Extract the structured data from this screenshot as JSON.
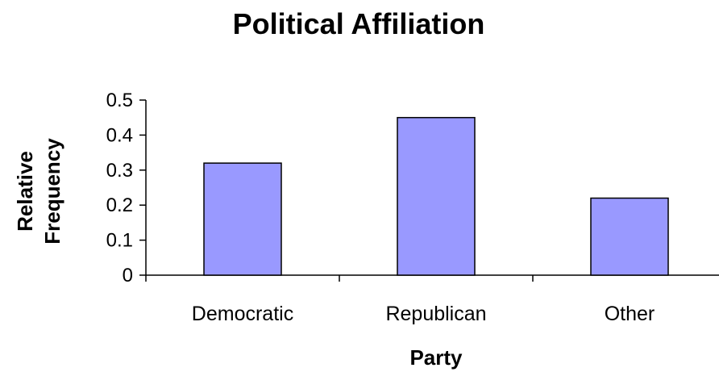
{
  "chart_data": {
    "type": "bar",
    "title": "Political Affiliation",
    "xlabel": "Party",
    "ylabel_lines": [
      "Relative",
      "Frequency"
    ],
    "categories": [
      "Democratic",
      "Republican",
      "Other"
    ],
    "values": [
      0.32,
      0.45,
      0.22
    ],
    "ylim": [
      0,
      0.5
    ],
    "yticks": [
      "0",
      "0.1",
      "0.2",
      "0.3",
      "0.4",
      "0.5"
    ],
    "bar_color": "#9999FF",
    "grid": false,
    "legend": "none"
  }
}
